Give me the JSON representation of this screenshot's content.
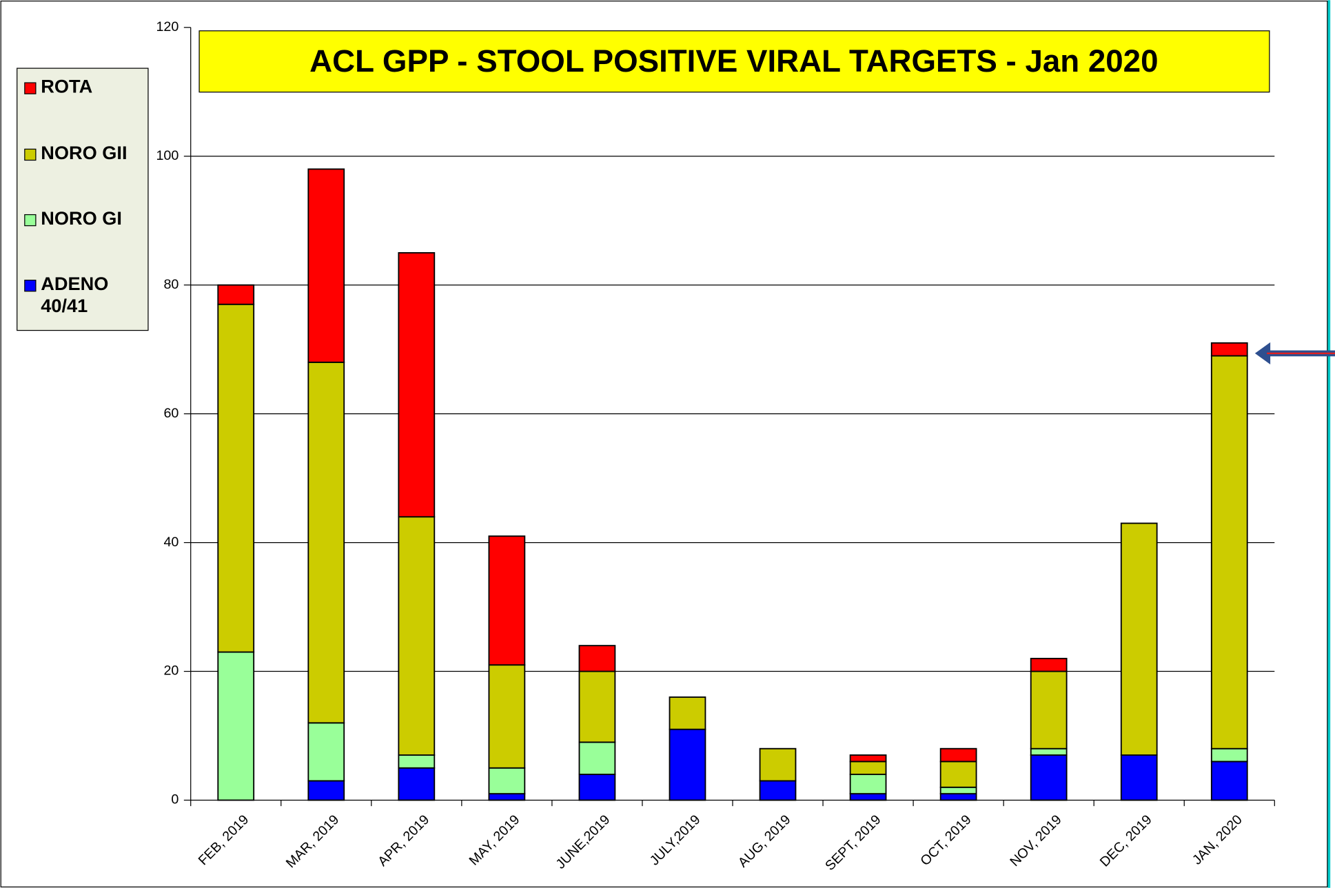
{
  "chart_data": {
    "type": "stacked_bar",
    "title": "ACL GPP - STOOL POSITIVE VIRAL TARGETS - Jan 2020",
    "categories": [
      "FEB, 2019",
      "MAR, 2019",
      "APR, 2019",
      "MAY, 2019",
      "JUNE,2019",
      "JULY,2019",
      "AUG, 2019",
      "SEPT, 2019",
      "OCT, 2019",
      "NOV, 2019",
      "DEC, 2019",
      "JAN, 2020"
    ],
    "series": [
      {
        "name": "ADENO 40/41",
        "color": "#0000ff",
        "values": [
          0,
          3,
          5,
          1,
          4,
          11,
          3,
          1,
          1,
          7,
          7,
          6
        ]
      },
      {
        "name": "NORO GI",
        "color": "#99ff99",
        "values": [
          23,
          9,
          2,
          4,
          5,
          0,
          0,
          3,
          1,
          1,
          0,
          2
        ]
      },
      {
        "name": "NORO GII",
        "color": "#cccc00",
        "values": [
          54,
          56,
          37,
          16,
          11,
          5,
          5,
          2,
          4,
          12,
          36,
          61
        ]
      },
      {
        "name": "ROTA",
        "color": "#ff0000",
        "values": [
          3,
          30,
          41,
          20,
          4,
          0,
          0,
          1,
          2,
          2,
          0,
          2
        ]
      }
    ],
    "ylim": [
      0,
      120
    ],
    "yticks": [
      0,
      20,
      40,
      60,
      80,
      100,
      120
    ],
    "grid": true,
    "legend": "left"
  }
}
